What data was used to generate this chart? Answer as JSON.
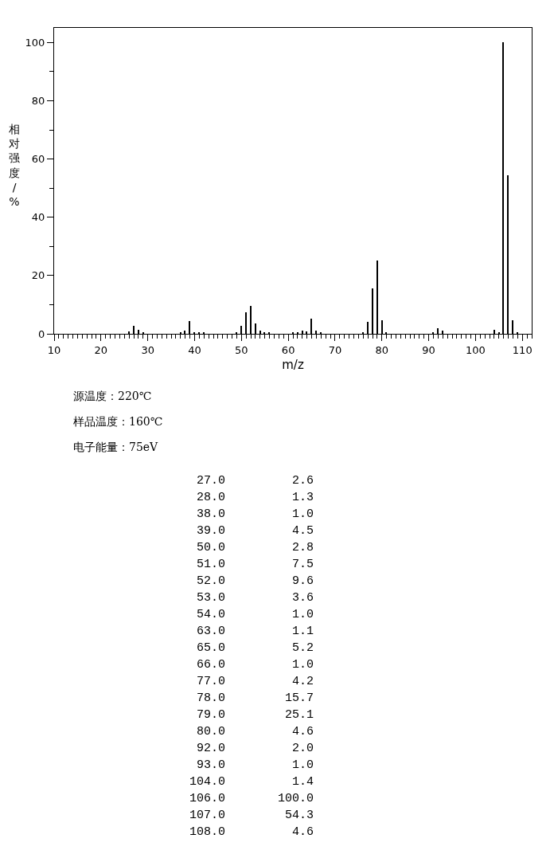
{
  "chart_data": [
    {
      "type": "bar",
      "xlabel": "m/z",
      "ylabel": "相对强度/%",
      "x": [
        26,
        27,
        28,
        29,
        37,
        38,
        39,
        40,
        41,
        42,
        49,
        50,
        51,
        52,
        53,
        54,
        55,
        56,
        61,
        62,
        63,
        64,
        65,
        66,
        67,
        76,
        77,
        78,
        79,
        80,
        81,
        91,
        92,
        93,
        104,
        105,
        106,
        107,
        108,
        109
      ],
      "series": [
        {
          "color": "#000000",
          "values": [
            0.8,
            2.6,
            1.3,
            0.3,
            0.5,
            1.0,
            4.5,
            0.4,
            0.5,
            0.3,
            0.3,
            2.8,
            7.5,
            9.6,
            3.6,
            1.0,
            0.3,
            0.3,
            0.3,
            0.3,
            1.1,
            0.8,
            5.2,
            1.0,
            0.3,
            0.6,
            4.2,
            15.7,
            25.1,
            4.6,
            0.3,
            0.3,
            2.0,
            1.0,
            1.4,
            0.6,
            100.0,
            54.3,
            4.6,
            0.3
          ]
        }
      ],
      "xlim": [
        10,
        112
      ],
      "xticks": [
        10,
        20,
        30,
        40,
        50,
        60,
        70,
        80,
        90,
        100,
        110
      ],
      "ylim": [
        0,
        105
      ],
      "yticks": [
        0,
        20,
        40,
        60,
        80,
        100
      ],
      "grid": false,
      "annotations": [
        "源温度：220℃",
        "样品温度：160℃",
        "电子能量：75eV"
      ]
    },
    {
      "type": "other",
      "annotations": [
        "27.0",
        "2.6",
        "28.0",
        "1.3",
        "38.0",
        "1.0",
        "39.0",
        "4.5",
        "50.0",
        "2.8",
        "51.0",
        "7.5",
        "52.0",
        "9.6",
        "53.0",
        "3.6",
        "54.0",
        "1.0",
        "63.0",
        "1.1",
        "65.0",
        "5.2",
        "66.0",
        "1.0",
        "77.0",
        "4.2",
        "78.0",
        "15.7",
        "79.0",
        "25.1",
        "80.0",
        "4.6",
        "92.0",
        "2.0",
        "93.0",
        "1.0",
        "104.0",
        "1.4",
        "106.0",
        "100.0",
        "107.0",
        "54.3",
        "108.0",
        "4.6"
      ]
    }
  ]
}
